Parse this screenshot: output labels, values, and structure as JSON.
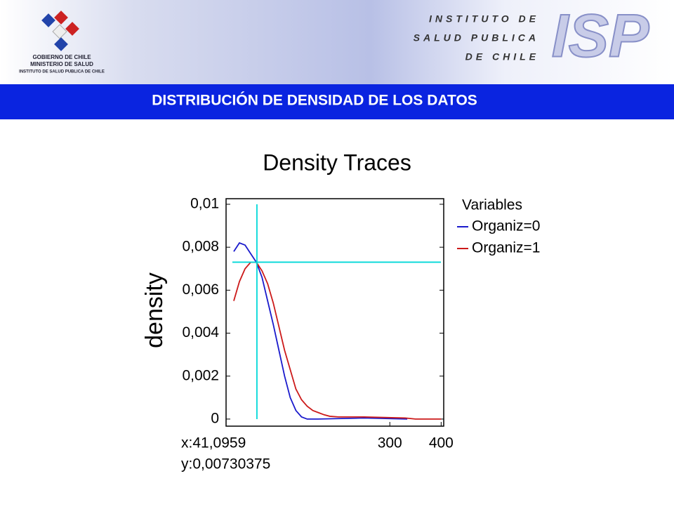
{
  "header": {
    "org_lines": [
      "GOBIERNO DE CHILE",
      "MINISTERIO DE SALUD",
      "INSTITUTO DE SALUD PUBLICA DE CHILE"
    ],
    "institute_lines": [
      "INSTITUTO DE",
      "SALUD PUBLICA",
      "DE CHILE"
    ],
    "logo": "ISP",
    "banner": "DISTRIBUCIÓN DE DENSIDAD DE LOS DATOS"
  },
  "chart_data": {
    "type": "line",
    "title": "Density Traces",
    "y_label": "density",
    "legend_title": "Variables",
    "legend": "outside-right",
    "xlim": [
      -19,
      405
    ],
    "xticks": [
      300,
      400
    ],
    "ylim": [
      -0.00033,
      0.01026
    ],
    "yticks": [
      0,
      {
        "value": 0.002,
        "label": "0,002"
      },
      {
        "value": 0.004,
        "label": "0,004"
      },
      {
        "value": 0.006,
        "label": "0,006"
      },
      {
        "value": 0.008,
        "label": "0,008"
      },
      {
        "value": 0.01,
        "label": "0,01"
      }
    ],
    "series": [
      {
        "name": "Organiz=0",
        "color": "#1a1acc",
        "x": [
          -4,
          7,
          18,
          29,
          40,
          51,
          62,
          73,
          84,
          95,
          106,
          117,
          128,
          139,
          160,
          250,
          334
        ],
        "values": [
          0.0078,
          0.0082,
          0.0081,
          0.0077,
          0.0073,
          0.0066,
          0.0055,
          0.0044,
          0.0032,
          0.002,
          0.001,
          0.0004,
          0.0001,
          0,
          0,
          5e-05,
          0
        ]
      },
      {
        "name": "Organiz=1",
        "color": "#cc1a1a",
        "x": [
          -4,
          7,
          18,
          29,
          40,
          51,
          62,
          73,
          84,
          95,
          106,
          117,
          128,
          139,
          150,
          161,
          172,
          183,
          200,
          250,
          330,
          350,
          400
        ],
        "values": [
          0.0055,
          0.0064,
          0.007,
          0.0073,
          0.0073,
          0.0069,
          0.0063,
          0.0054,
          0.0043,
          0.0032,
          0.0023,
          0.0014,
          0.0009,
          0.0006,
          0.0004,
          0.0003,
          0.0002,
          0.00013,
          0.0001,
          0.0001,
          5e-05,
          0,
          0
        ]
      }
    ],
    "crosshair": {
      "color": "#00d8d8",
      "x": {
        "value": 41.0959,
        "label": "x:41,0959"
      },
      "y": {
        "value": 0.00730375,
        "label": "y:0,00730375"
      }
    }
  }
}
